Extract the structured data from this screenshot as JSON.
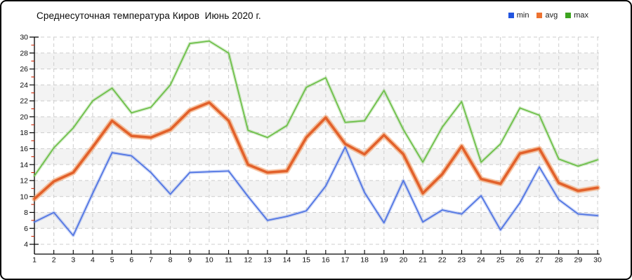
{
  "window": {
    "background": "#ffffff",
    "border_color": "#000000"
  },
  "header": {
    "title": "Среднесуточная температура Киров  Июнь 2020 г."
  },
  "legend": {
    "position": "top-right",
    "items": [
      {
        "label": "min",
        "color": "#2255e0"
      },
      {
        "label": "avg",
        "color": "#ed7230"
      },
      {
        "label": "max",
        "color": "#3da41f"
      }
    ]
  },
  "chart_data": {
    "type": "line",
    "title": "Среднесуточная температура Киров  Июнь 2020 г.",
    "xlabel": "",
    "ylabel": "",
    "x": [
      1,
      2,
      3,
      4,
      5,
      6,
      7,
      8,
      9,
      10,
      11,
      12,
      13,
      14,
      15,
      16,
      17,
      18,
      19,
      20,
      21,
      22,
      23,
      24,
      25,
      26,
      27,
      28,
      29,
      30
    ],
    "series": [
      {
        "name": "max",
        "color": "#6cbf47",
        "halo": "rgba(108,191,71,0.28)",
        "width": 1.7,
        "halo_width": 4.5,
        "values": [
          12.6,
          16.1,
          18.6,
          22.0,
          23.6,
          20.5,
          21.2,
          24.0,
          29.2,
          29.5,
          28.0,
          18.3,
          17.4,
          18.9,
          23.7,
          24.9,
          19.3,
          19.5,
          23.3,
          18.4,
          14.3,
          18.7,
          21.9,
          14.3,
          16.6,
          21.1,
          20.2,
          14.7,
          13.8,
          14.6
        ]
      },
      {
        "name": "avg",
        "color": "#e2612b",
        "halo": "rgba(240,150,90,0.55)",
        "width": 3.6,
        "halo_width": 7.5,
        "values": [
          9.7,
          11.9,
          13.0,
          16.2,
          19.5,
          17.6,
          17.4,
          18.4,
          20.8,
          21.8,
          19.5,
          14.0,
          13.0,
          13.2,
          17.4,
          19.9,
          16.6,
          15.3,
          17.7,
          15.3,
          10.4,
          12.8,
          16.3,
          12.2,
          11.6,
          15.4,
          16.0,
          11.7,
          10.7,
          11.1
        ]
      },
      {
        "name": "min",
        "color": "#4f74e3",
        "halo": "rgba(79,116,227,0.28)",
        "width": 1.7,
        "halo_width": 4.5,
        "values": [
          6.8,
          8.0,
          5.1,
          10.4,
          15.5,
          15.1,
          13.0,
          10.3,
          13.0,
          13.1,
          13.2,
          10.0,
          7.0,
          7.5,
          8.2,
          11.3,
          16.2,
          10.5,
          6.7,
          12.0,
          6.8,
          8.3,
          7.8,
          10.1,
          5.8,
          9.2,
          13.7,
          9.6,
          7.8,
          7.6
        ]
      }
    ],
    "ylim": [
      4,
      30
    ],
    "ytick_step": 2,
    "y_minor_tick_step": 1,
    "grid": true,
    "grid_color": "#cdcdcd",
    "band_color": "#f3f3f3",
    "axis_color": "#000000",
    "minor_tick_color": "#cc2200",
    "tick_label_color": "#0a0a0a",
    "legend_position": "top-right"
  }
}
